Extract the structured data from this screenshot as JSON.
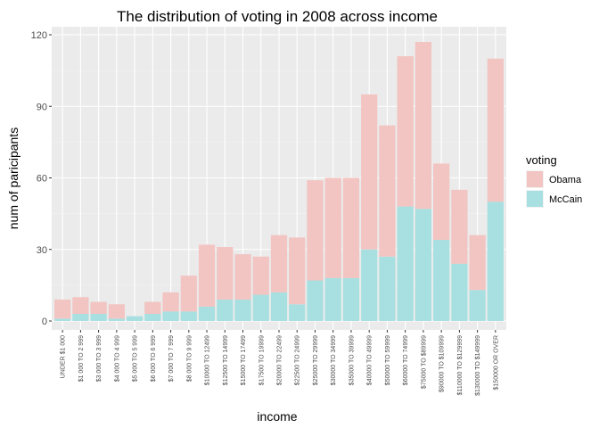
{
  "chart_data": {
    "type": "bar",
    "stacked": true,
    "title": "The distribution of voting in 2008 across income",
    "xlabel": "income",
    "ylabel": "num of paricipants",
    "ylim": [
      0,
      120
    ],
    "yticks": [
      0,
      30,
      60,
      90,
      120
    ],
    "grid": true,
    "legend": {
      "title": "voting",
      "placement": "right"
    },
    "categories": [
      "UNDER $1 000",
      "$1 000 TO 2 999",
      "$3 000 TO 3 999",
      "$4 000 TO 4 999",
      "$5 000 TO 5 999",
      "$6 000 TO 6 999",
      "$7 000 TO 7 999",
      "$8 000 TO 9 999",
      "$10000 TO 12499",
      "$12500 TO 14999",
      "$15000 TO 17499",
      "$17500 TO 19999",
      "$20000 TO 22499",
      "$22500 TO 24999",
      "$25000 TO 29999",
      "$30000 TO 34999",
      "$35000 TO 39999",
      "$40000 TO 49999",
      "$50000 TO 59999",
      "$60000 TO 74999",
      "$75000 TO $89999",
      "$90000 TO $109999",
      "$110000 TO $129999",
      "$130000 TO $149999",
      "$150000 OR OVER"
    ],
    "series": [
      {
        "name": "McCain",
        "color": "#a8e0e1",
        "values": [
          1,
          3,
          3,
          1,
          2,
          3,
          4,
          4,
          6,
          9,
          9,
          11,
          12,
          7,
          17,
          18,
          18,
          30,
          27,
          48,
          47,
          34,
          24,
          13,
          50
        ]
      },
      {
        "name": "Obama",
        "color": "#f2c4c2",
        "values": [
          8,
          7,
          5,
          6,
          0,
          5,
          8,
          15,
          26,
          22,
          19,
          16,
          24,
          28,
          42,
          42,
          42,
          65,
          55,
          63,
          70,
          32,
          31,
          23,
          60
        ]
      }
    ]
  }
}
